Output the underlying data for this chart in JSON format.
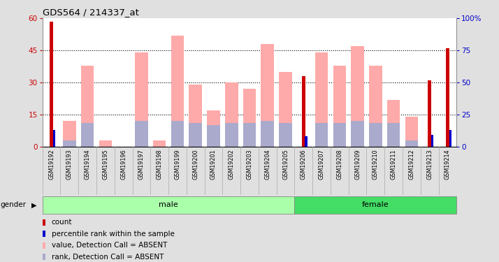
{
  "title": "GDS564 / 214337_at",
  "samples": [
    "GSM19192",
    "GSM19193",
    "GSM19194",
    "GSM19195",
    "GSM19196",
    "GSM19197",
    "GSM19198",
    "GSM19199",
    "GSM19200",
    "GSM19201",
    "GSM19202",
    "GSM19203",
    "GSM19204",
    "GSM19205",
    "GSM19206",
    "GSM19207",
    "GSM19208",
    "GSM19209",
    "GSM19210",
    "GSM19211",
    "GSM19212",
    "GSM19213",
    "GSM19214"
  ],
  "count_values": [
    58.5,
    0,
    0,
    0,
    0,
    0,
    0,
    0,
    0,
    0,
    0,
    0,
    0,
    0,
    33,
    0,
    0,
    0,
    0,
    0,
    0,
    31,
    46
  ],
  "percentile_values": [
    13,
    0,
    0,
    0,
    0,
    0,
    0,
    0,
    0,
    0,
    0,
    0,
    0,
    0,
    8,
    0,
    0,
    0,
    0,
    0,
    0,
    9,
    13
  ],
  "absent_value_values": [
    0,
    12,
    38,
    3,
    0,
    44,
    3,
    52,
    29,
    17,
    30,
    27,
    48,
    35,
    0,
    44,
    38,
    47,
    38,
    22,
    14,
    0,
    0
  ],
  "absent_rank_values": [
    0,
    3,
    11,
    0,
    0,
    12,
    0,
    12,
    11,
    10,
    11,
    11,
    12,
    11,
    0,
    11,
    11,
    12,
    11,
    11,
    3,
    0,
    0
  ],
  "ylim_left": [
    0,
    60
  ],
  "ylim_right": [
    0,
    100
  ],
  "yticks_left": [
    0,
    15,
    30,
    45,
    60
  ],
  "yticks_right": [
    0,
    25,
    50,
    75,
    100
  ],
  "ytick_labels_right": [
    "0",
    "25",
    "50",
    "75",
    "100%"
  ],
  "color_count": "#cc0000",
  "color_percentile": "#0000cc",
  "color_absent_value": "#ffaaaa",
  "color_absent_rank": "#aaaacc",
  "bg_color": "#e0e0e0",
  "plot_bg_color": "#ffffff",
  "tick_bg_color": "#cccccc",
  "male_color": "#aaffaa",
  "female_color": "#44dd66",
  "gender_label": "gender",
  "legend_items": [
    {
      "color": "#cc0000",
      "label": "count"
    },
    {
      "color": "#0000cc",
      "label": "percentile rank within the sample"
    },
    {
      "color": "#ffaaaa",
      "label": "value, Detection Call = ABSENT"
    },
    {
      "color": "#aaaacc",
      "label": "rank, Detection Call = ABSENT"
    }
  ],
  "num_male": 14,
  "num_female": 9
}
